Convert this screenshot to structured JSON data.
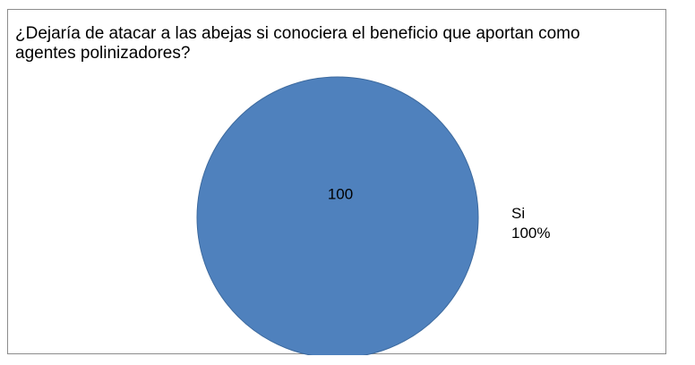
{
  "chart_data": {
    "type": "pie",
    "title": "¿Dejaría de atacar a las abejas si conociera el beneficio que aportan como agentes polinizadores?",
    "slices": [
      {
        "label": "Si",
        "value": 100,
        "percent_label": "100%",
        "color": "#4f81bd"
      }
    ],
    "legend": "none"
  }
}
